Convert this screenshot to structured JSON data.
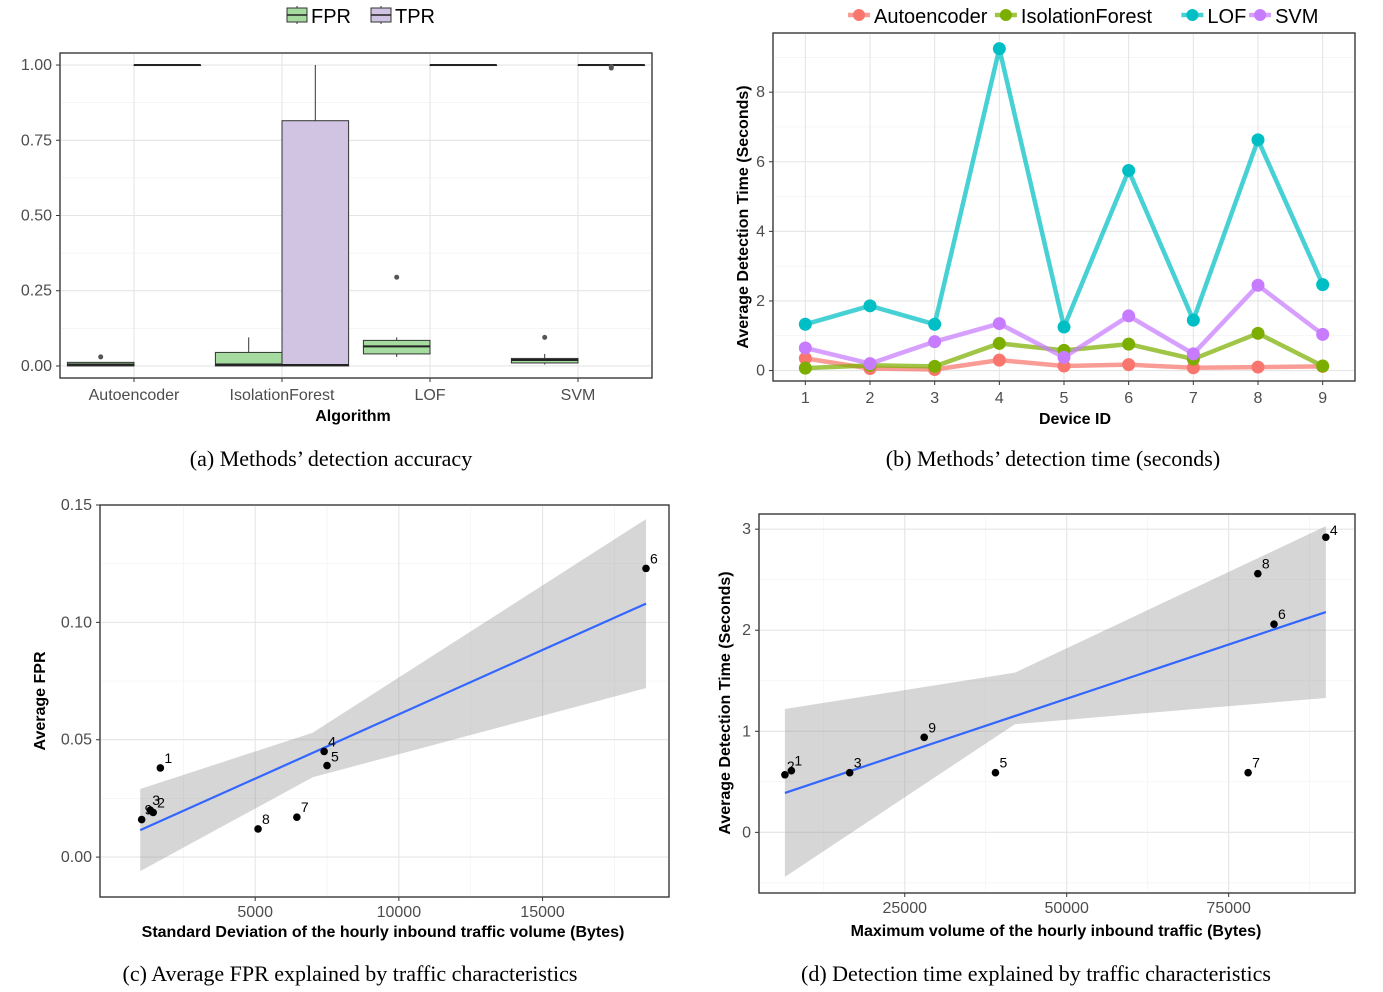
{
  "panel_a": {
    "caption": "(a) Methods’ detection accuracy",
    "chart_data": {
      "type": "box",
      "title": "",
      "xlabel": "Algorithm",
      "ylabel": "",
      "ylim": [
        -0.04,
        1.04
      ],
      "y_ticks": [
        "0.00",
        "0.25",
        "0.50",
        "0.75",
        "1.00"
      ],
      "categories": [
        "Autoencoder",
        "IsolationForest",
        "LOF",
        "SVM"
      ],
      "legend_position": "top",
      "grid": true,
      "series": [
        {
          "name": "FPR",
          "color": "#a6dba0",
          "boxes": [
            {
              "min": 0.0,
              "q1": 0.0,
              "median": 0.005,
              "q3": 0.012,
              "max": 0.012,
              "outliers": [
                0.03
              ]
            },
            {
              "min": 0.0,
              "q1": 0.0,
              "median": 0.005,
              "q3": 0.045,
              "max": 0.095,
              "outliers": []
            },
            {
              "min": 0.03,
              "q1": 0.04,
              "median": 0.065,
              "q3": 0.085,
              "max": 0.095,
              "outliers": [
                0.295
              ]
            },
            {
              "min": 0.005,
              "q1": 0.01,
              "median": 0.02,
              "q3": 0.025,
              "max": 0.04,
              "outliers": [
                0.095
              ]
            }
          ]
        },
        {
          "name": "TPR",
          "color": "#d0c4e2",
          "boxes": [
            {
              "min": 1.0,
              "q1": 1.0,
              "median": 1.0,
              "q3": 1.0,
              "max": 1.0,
              "outliers": []
            },
            {
              "min": 0.0,
              "q1": 0.0,
              "median": 0.003,
              "q3": 0.815,
              "max": 1.0,
              "outliers": []
            },
            {
              "min": 1.0,
              "q1": 1.0,
              "median": 1.0,
              "q3": 1.0,
              "max": 1.0,
              "outliers": []
            },
            {
              "min": 1.0,
              "q1": 1.0,
              "median": 1.0,
              "q3": 1.0,
              "max": 1.0,
              "outliers": [
                0.99,
                0.995
              ]
            }
          ]
        }
      ]
    }
  },
  "panel_b": {
    "caption": "(b) Methods’ detection time (seconds)",
    "chart_data": {
      "type": "line",
      "title": "",
      "xlabel": "Device ID",
      "ylabel": "Average Detection Time (Seconds)",
      "x": [
        1,
        2,
        3,
        4,
        5,
        6,
        7,
        8,
        9
      ],
      "y_ticks": [
        "0",
        "2",
        "4",
        "6",
        "8"
      ],
      "ylim": [
        -0.3,
        9.7
      ],
      "legend_position": "top",
      "grid": true,
      "series": [
        {
          "name": "Autoencoder",
          "color": "#f8766d",
          "values": [
            0.35,
            0.06,
            0.03,
            0.3,
            0.13,
            0.17,
            0.08,
            0.1,
            0.12
          ]
        },
        {
          "name": "IsolationForest",
          "color": "#7cae00",
          "values": [
            0.07,
            0.15,
            0.12,
            0.78,
            0.58,
            0.76,
            0.33,
            1.07,
            0.13
          ]
        },
        {
          "name": "LOF",
          "color": "#00bfc4",
          "values": [
            1.33,
            1.86,
            1.33,
            9.25,
            1.25,
            5.75,
            1.45,
            6.63,
            2.47
          ]
        },
        {
          "name": "SVM",
          "color": "#c77cff",
          "values": [
            0.65,
            0.2,
            0.83,
            1.35,
            0.38,
            1.57,
            0.48,
            2.45,
            1.04
          ]
        }
      ]
    }
  },
  "panel_c": {
    "caption": "(c) Average FPR explained by traffic characteristics",
    "chart_data": {
      "type": "scatter",
      "title": "",
      "xlabel": "Standard Deviation of the hourly inbound traffic volume (Bytes)",
      "ylabel": "Average FPR",
      "xlim": [
        -400,
        19400
      ],
      "ylim": [
        -0.017,
        0.15
      ],
      "x_ticks": [
        "5000",
        "10000",
        "15000"
      ],
      "y_ticks": [
        "0.00",
        "0.05",
        "0.10",
        "0.15"
      ],
      "grid": true,
      "points": [
        {
          "label": "1",
          "x": 1700,
          "y": 0.038
        },
        {
          "label": "2",
          "x": 1450,
          "y": 0.019
        },
        {
          "label": "3",
          "x": 1350,
          "y": 0.02
        },
        {
          "label": "4",
          "x": 7400,
          "y": 0.045
        },
        {
          "label": "5",
          "x": 7500,
          "y": 0.039
        },
        {
          "label": "6",
          "x": 18600,
          "y": 0.123
        },
        {
          "label": "7",
          "x": 6450,
          "y": 0.017
        },
        {
          "label": "8",
          "x": 5100,
          "y": 0.012
        },
        {
          "label": "9",
          "x": 1050,
          "y": 0.016
        }
      ],
      "fit_line": {
        "color": "#3366ff",
        "from": {
          "x": 1000,
          "y": 0.0115
        },
        "to": {
          "x": 18600,
          "y": 0.108
        }
      },
      "confidence_band": {
        "x": [
          1000,
          7000,
          18600
        ],
        "lower": [
          -0.006,
          0.034,
          0.072
        ],
        "upper": [
          0.029,
          0.053,
          0.144
        ]
      }
    }
  },
  "panel_d": {
    "caption": "(d) Detection time explained by traffic characteristics",
    "chart_data": {
      "type": "scatter",
      "title": "",
      "xlabel": "Maximum volume of the hourly inbound traffic (Bytes)",
      "ylabel": "Average Detection Time (Seconds)",
      "xlim": [
        2500,
        94500
      ],
      "ylim": [
        -0.6,
        3.15
      ],
      "x_ticks": [
        "25000",
        "50000",
        "75000"
      ],
      "y_ticks": [
        "0",
        "1",
        "2",
        "3"
      ],
      "grid": true,
      "points": [
        {
          "label": "1",
          "x": 7500,
          "y": 0.61
        },
        {
          "label": "2",
          "x": 6500,
          "y": 0.57
        },
        {
          "label": "3",
          "x": 16500,
          "y": 0.59
        },
        {
          "label": "4",
          "x": 90000,
          "y": 2.92
        },
        {
          "label": "5",
          "x": 39000,
          "y": 0.59
        },
        {
          "label": "6",
          "x": 82000,
          "y": 2.06
        },
        {
          "label": "7",
          "x": 78000,
          "y": 0.59
        },
        {
          "label": "8",
          "x": 79500,
          "y": 2.56
        },
        {
          "label": "9",
          "x": 28000,
          "y": 0.94
        }
      ],
      "fit_line": {
        "color": "#3366ff",
        "from": {
          "x": 6500,
          "y": 0.39
        },
        "to": {
          "x": 90000,
          "y": 2.18
        }
      },
      "confidence_band": {
        "x": [
          6500,
          42000,
          90000
        ],
        "lower": [
          -0.44,
          1.07,
          1.33
        ],
        "upper": [
          1.22,
          1.58,
          3.03
        ]
      }
    }
  }
}
